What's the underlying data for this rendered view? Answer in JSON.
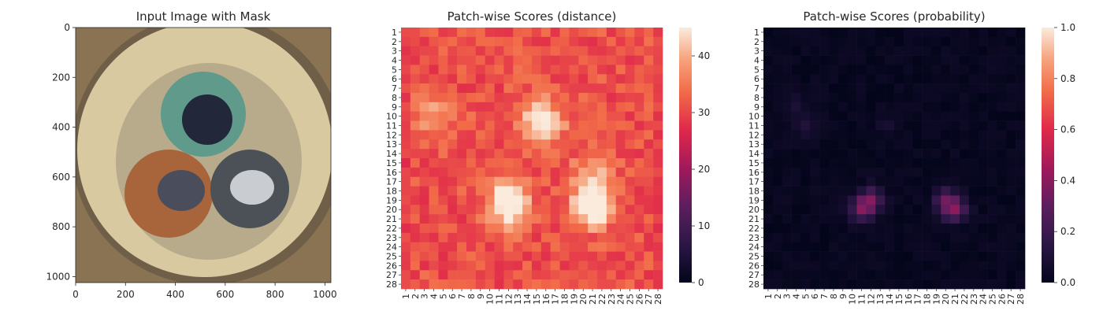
{
  "chart_data": [
    {
      "type": "image",
      "title": "Input Image with Mask",
      "xlim": [
        0,
        1024
      ],
      "ylim": [
        1024,
        0
      ],
      "xticks": [
        0,
        200,
        400,
        600,
        800,
        1000
      ],
      "yticks": [
        0,
        200,
        400,
        600,
        800,
        1000
      ],
      "image_content": "cross-section of a three-core cable: green, brown and grey insulated conductors inside a cream sheath on brown background"
    },
    {
      "type": "heatmap",
      "title": "Patch-wise Scores (distance)",
      "rows": 28,
      "cols": 28,
      "colorbar": {
        "min": 0,
        "max": 45,
        "ticks": [
          0,
          10,
          20,
          30,
          40
        ]
      },
      "colormap": "rocket",
      "value_description": "mostly 30-36, bright regions up to ~45 around rows 9-12 cols 12-18 and rows 17-21 cols 10-13 and 19-23",
      "hotspots": [
        {
          "row": 10,
          "col": 15,
          "value": 42
        },
        {
          "row": 11,
          "col": 16,
          "value": 42
        },
        {
          "row": 19,
          "col": 12,
          "value": 44
        },
        {
          "row": 20,
          "col": 12,
          "value": 45
        },
        {
          "row": 20,
          "col": 21,
          "value": 45
        },
        {
          "row": 19,
          "col": 21,
          "value": 44
        },
        {
          "row": 16,
          "col": 21,
          "value": 41
        },
        {
          "row": 10,
          "col": 4,
          "value": 40
        }
      ]
    },
    {
      "type": "heatmap",
      "title": "Patch-wise Scores (probability)",
      "rows": 28,
      "cols": 28,
      "colorbar": {
        "min": 0.0,
        "max": 1.0,
        "ticks": [
          "0.0",
          "0.2",
          "0.4",
          "0.6",
          "0.8",
          "1.0"
        ]
      },
      "colormap": "rocket",
      "value_description": "nearly all ~0.0, faint spots up to ~0.35 near rows 19-21 cols 11-13 and 19-21",
      "hotspots": [
        {
          "row": 19,
          "col": 12,
          "value": 0.3
        },
        {
          "row": 20,
          "col": 11,
          "value": 0.28
        },
        {
          "row": 20,
          "col": 21,
          "value": 0.32
        },
        {
          "row": 19,
          "col": 20,
          "value": 0.25
        },
        {
          "row": 11,
          "col": 5,
          "value": 0.08
        },
        {
          "row": 11,
          "col": 14,
          "value": 0.06
        },
        {
          "row": 9,
          "col": 4,
          "value": 0.06
        }
      ]
    }
  ]
}
